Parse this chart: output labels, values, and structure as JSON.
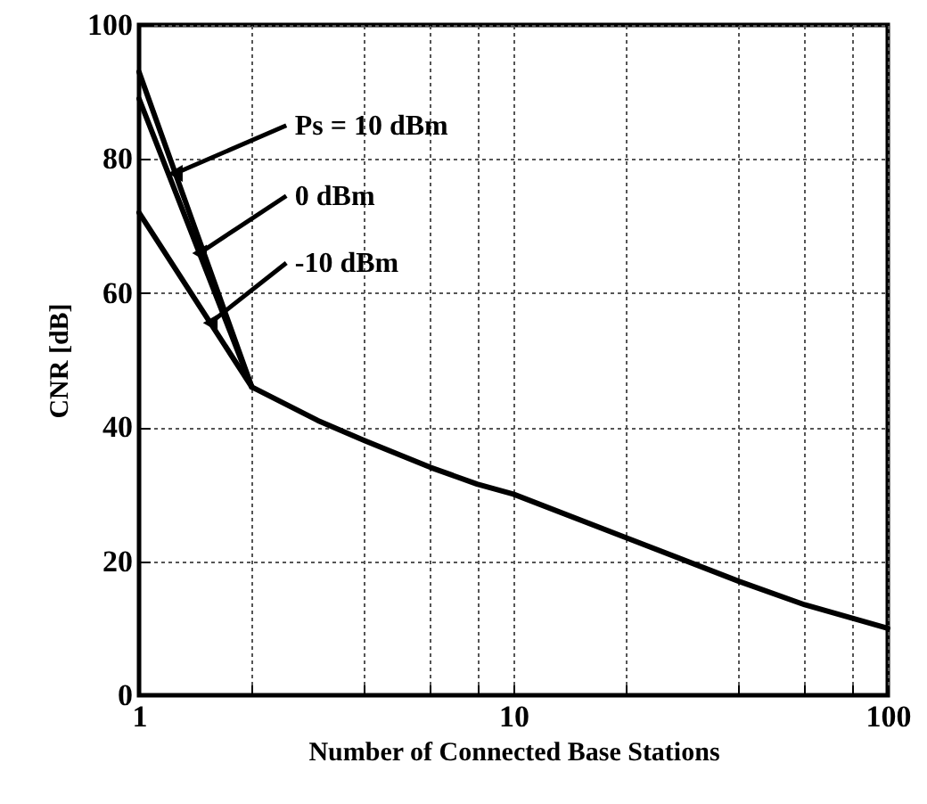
{
  "chart_data": {
    "type": "line",
    "xlabel": "Number of Connected Base Stations",
    "ylabel": "CNR [dB]",
    "log": "x",
    "xlim": [
      1,
      100
    ],
    "xticks": [
      1,
      {
        "value": 2,
        "label": null
      },
      {
        "value": 4,
        "label": null
      },
      {
        "value": 6,
        "label": null
      },
      {
        "value": 8,
        "label": null
      },
      10,
      {
        "value": 20,
        "label": null
      },
      {
        "value": 40,
        "label": null
      },
      {
        "value": 60,
        "label": null
      },
      {
        "value": 80,
        "label": null
      },
      100
    ],
    "ylim": [
      0,
      100
    ],
    "yticks": [
      0,
      20,
      40,
      60,
      80,
      100
    ],
    "grid": true,
    "marker": "none",
    "line_style": "solid",
    "series": [
      {
        "name": "Ps = 10 dBm",
        "color": "#000000",
        "x": [
          1,
          2
        ],
        "values": [
          93,
          46
        ]
      },
      {
        "name": "0 dBm",
        "color": "#000000",
        "x": [
          1,
          2
        ],
        "values": [
          89,
          46
        ]
      },
      {
        "name": "-10 dBm",
        "color": "#000000",
        "x": [
          1,
          2
        ],
        "values": [
          72,
          46
        ]
      },
      {
        "color": "#000000",
        "x": [
          2,
          3,
          4,
          6,
          8,
          10,
          20,
          40,
          60,
          100
        ],
        "values": [
          46,
          41,
          38,
          34,
          31.5,
          30,
          23.5,
          17,
          13.5,
          10
        ]
      }
    ]
  }
}
